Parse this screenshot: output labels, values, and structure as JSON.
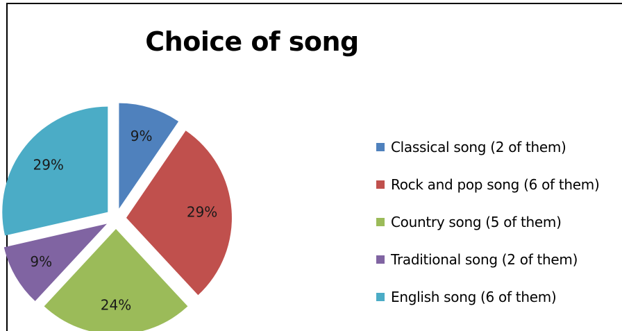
{
  "chart_data": {
    "type": "pie",
    "title": "Choice of song",
    "legend_position": "right",
    "slices": [
      {
        "label": "Classical song (2 of them)",
        "value": 2,
        "percent_label": "9%",
        "color": "#4f81bd"
      },
      {
        "label": "Rock and pop song (6 of them)",
        "value": 6,
        "percent_label": "29%",
        "color": "#c0504d"
      },
      {
        "label": "Country song (5 of them)",
        "value": 5,
        "percent_label": "24%",
        "color": "#9bbb59"
      },
      {
        "label": "Traditional song (2 of them)",
        "value": 2,
        "percent_label": "9%",
        "color": "#8064a2"
      },
      {
        "label": "English song (6 of them)",
        "value": 6,
        "percent_label": "29%",
        "color": "#4bacc6"
      }
    ]
  }
}
